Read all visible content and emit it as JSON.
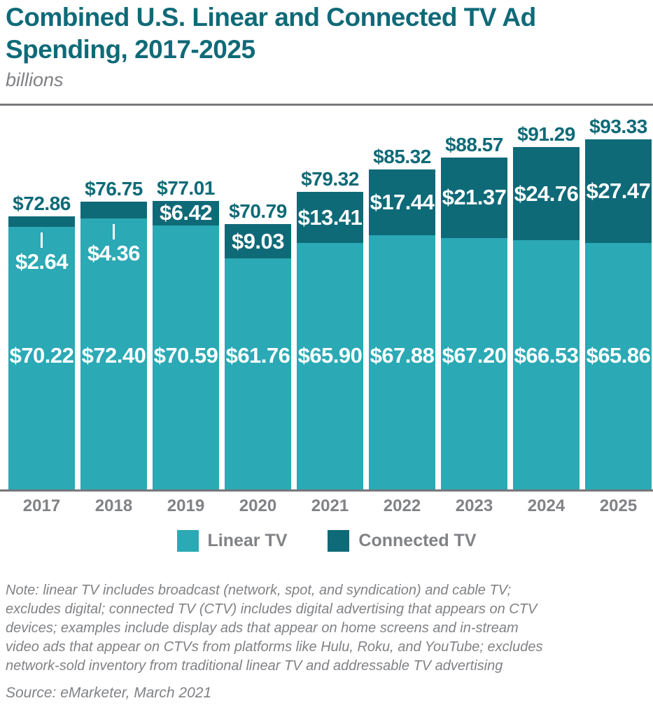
{
  "header": {
    "title": "Combined U.S. Linear and Connected TV Ad\nSpending, 2017-2025",
    "subtitle": "billions"
  },
  "chart_data": {
    "type": "bar",
    "stacked": true,
    "title": "Combined U.S. Linear and Connected TV Ad Spending, 2017-2025",
    "unit_label": "billions",
    "value_prefix": "$",
    "grid": false,
    "y_axis_visible": false,
    "legend_position": "bottom",
    "categories": [
      "2017",
      "2018",
      "2019",
      "2020",
      "2021",
      "2022",
      "2023",
      "2024",
      "2025"
    ],
    "series": [
      {
        "name": "Linear TV",
        "color": "#2BA9B5",
        "values": [
          70.22,
          72.4,
          70.59,
          61.76,
          65.9,
          67.88,
          67.2,
          66.53,
          65.86
        ]
      },
      {
        "name": "Connected TV",
        "color": "#0F6A78",
        "values": [
          2.64,
          4.36,
          6.42,
          9.03,
          13.41,
          17.44,
          21.37,
          24.76,
          27.47
        ]
      }
    ],
    "totals": [
      72.86,
      76.75,
      77.01,
      70.79,
      79.32,
      85.32,
      88.57,
      91.29,
      93.33
    ]
  },
  "legend": {
    "linear_label": "Linear TV",
    "connected_label": "Connected TV"
  },
  "footer": {
    "note": "Note: linear TV includes broadcast (network, spot, and syndication) and cable TV;\nexcludes digital; connected TV (CTV) includes digital advertising that appears on CTV\ndevices; examples include display ads that appear on home screens and in-stream\nvideo ads that appear on CTVs from platforms like Hulu, Roku, and YouTube; excludes\nnetwork-sold inventory from traditional linear TV and addressable TV advertising",
    "source": "Source: eMarketer, March 2021"
  },
  "colors": {
    "linear_teal": "#2BA9B5",
    "connected_teal": "#0F6A78",
    "title_teal": "#0F6A78",
    "gray_text": "#808285",
    "axis_gray": "#76777B"
  }
}
